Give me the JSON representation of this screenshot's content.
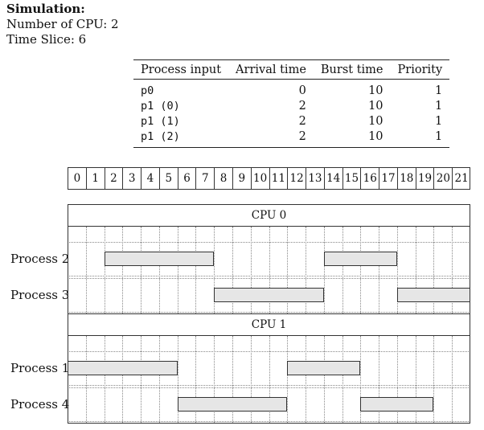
{
  "simulation": {
    "title": "Simulation:",
    "cpus": "Number of CPU: 2",
    "time_slice": "Time Slice: 6"
  },
  "params_table": {
    "headers": [
      "Process input",
      "Arrival time",
      "Burst time",
      "Priority"
    ],
    "rows": [
      [
        "p0",
        "0",
        "10",
        "1"
      ],
      [
        "p1 (0)",
        "2",
        "10",
        "1"
      ],
      [
        "p1 (1)",
        "2",
        "10",
        "1"
      ],
      [
        "p1 (2)",
        "2",
        "10",
        "1"
      ]
    ]
  },
  "gantt": {
    "time_ticks": [
      0,
      1,
      2,
      3,
      4,
      5,
      6,
      7,
      8,
      9,
      10,
      11,
      12,
      13,
      14,
      15,
      16,
      17,
      18,
      19,
      20,
      21
    ],
    "cpus": [
      {
        "label": "CPU 0",
        "processes": [
          {
            "label": "Process 2",
            "segments": [
              [
                2,
                8
              ],
              [
                14,
                18
              ]
            ]
          },
          {
            "label": "Process 3",
            "segments": [
              [
                8,
                14
              ],
              [
                18,
                22
              ]
            ]
          }
        ]
      },
      {
        "label": "CPU 1",
        "processes": [
          {
            "label": "Process 1",
            "segments": [
              [
                0,
                6
              ],
              [
                12,
                16
              ]
            ]
          },
          {
            "label": "Process 4",
            "segments": [
              [
                6,
                12
              ],
              [
                16,
                20
              ]
            ]
          }
        ]
      }
    ]
  }
}
